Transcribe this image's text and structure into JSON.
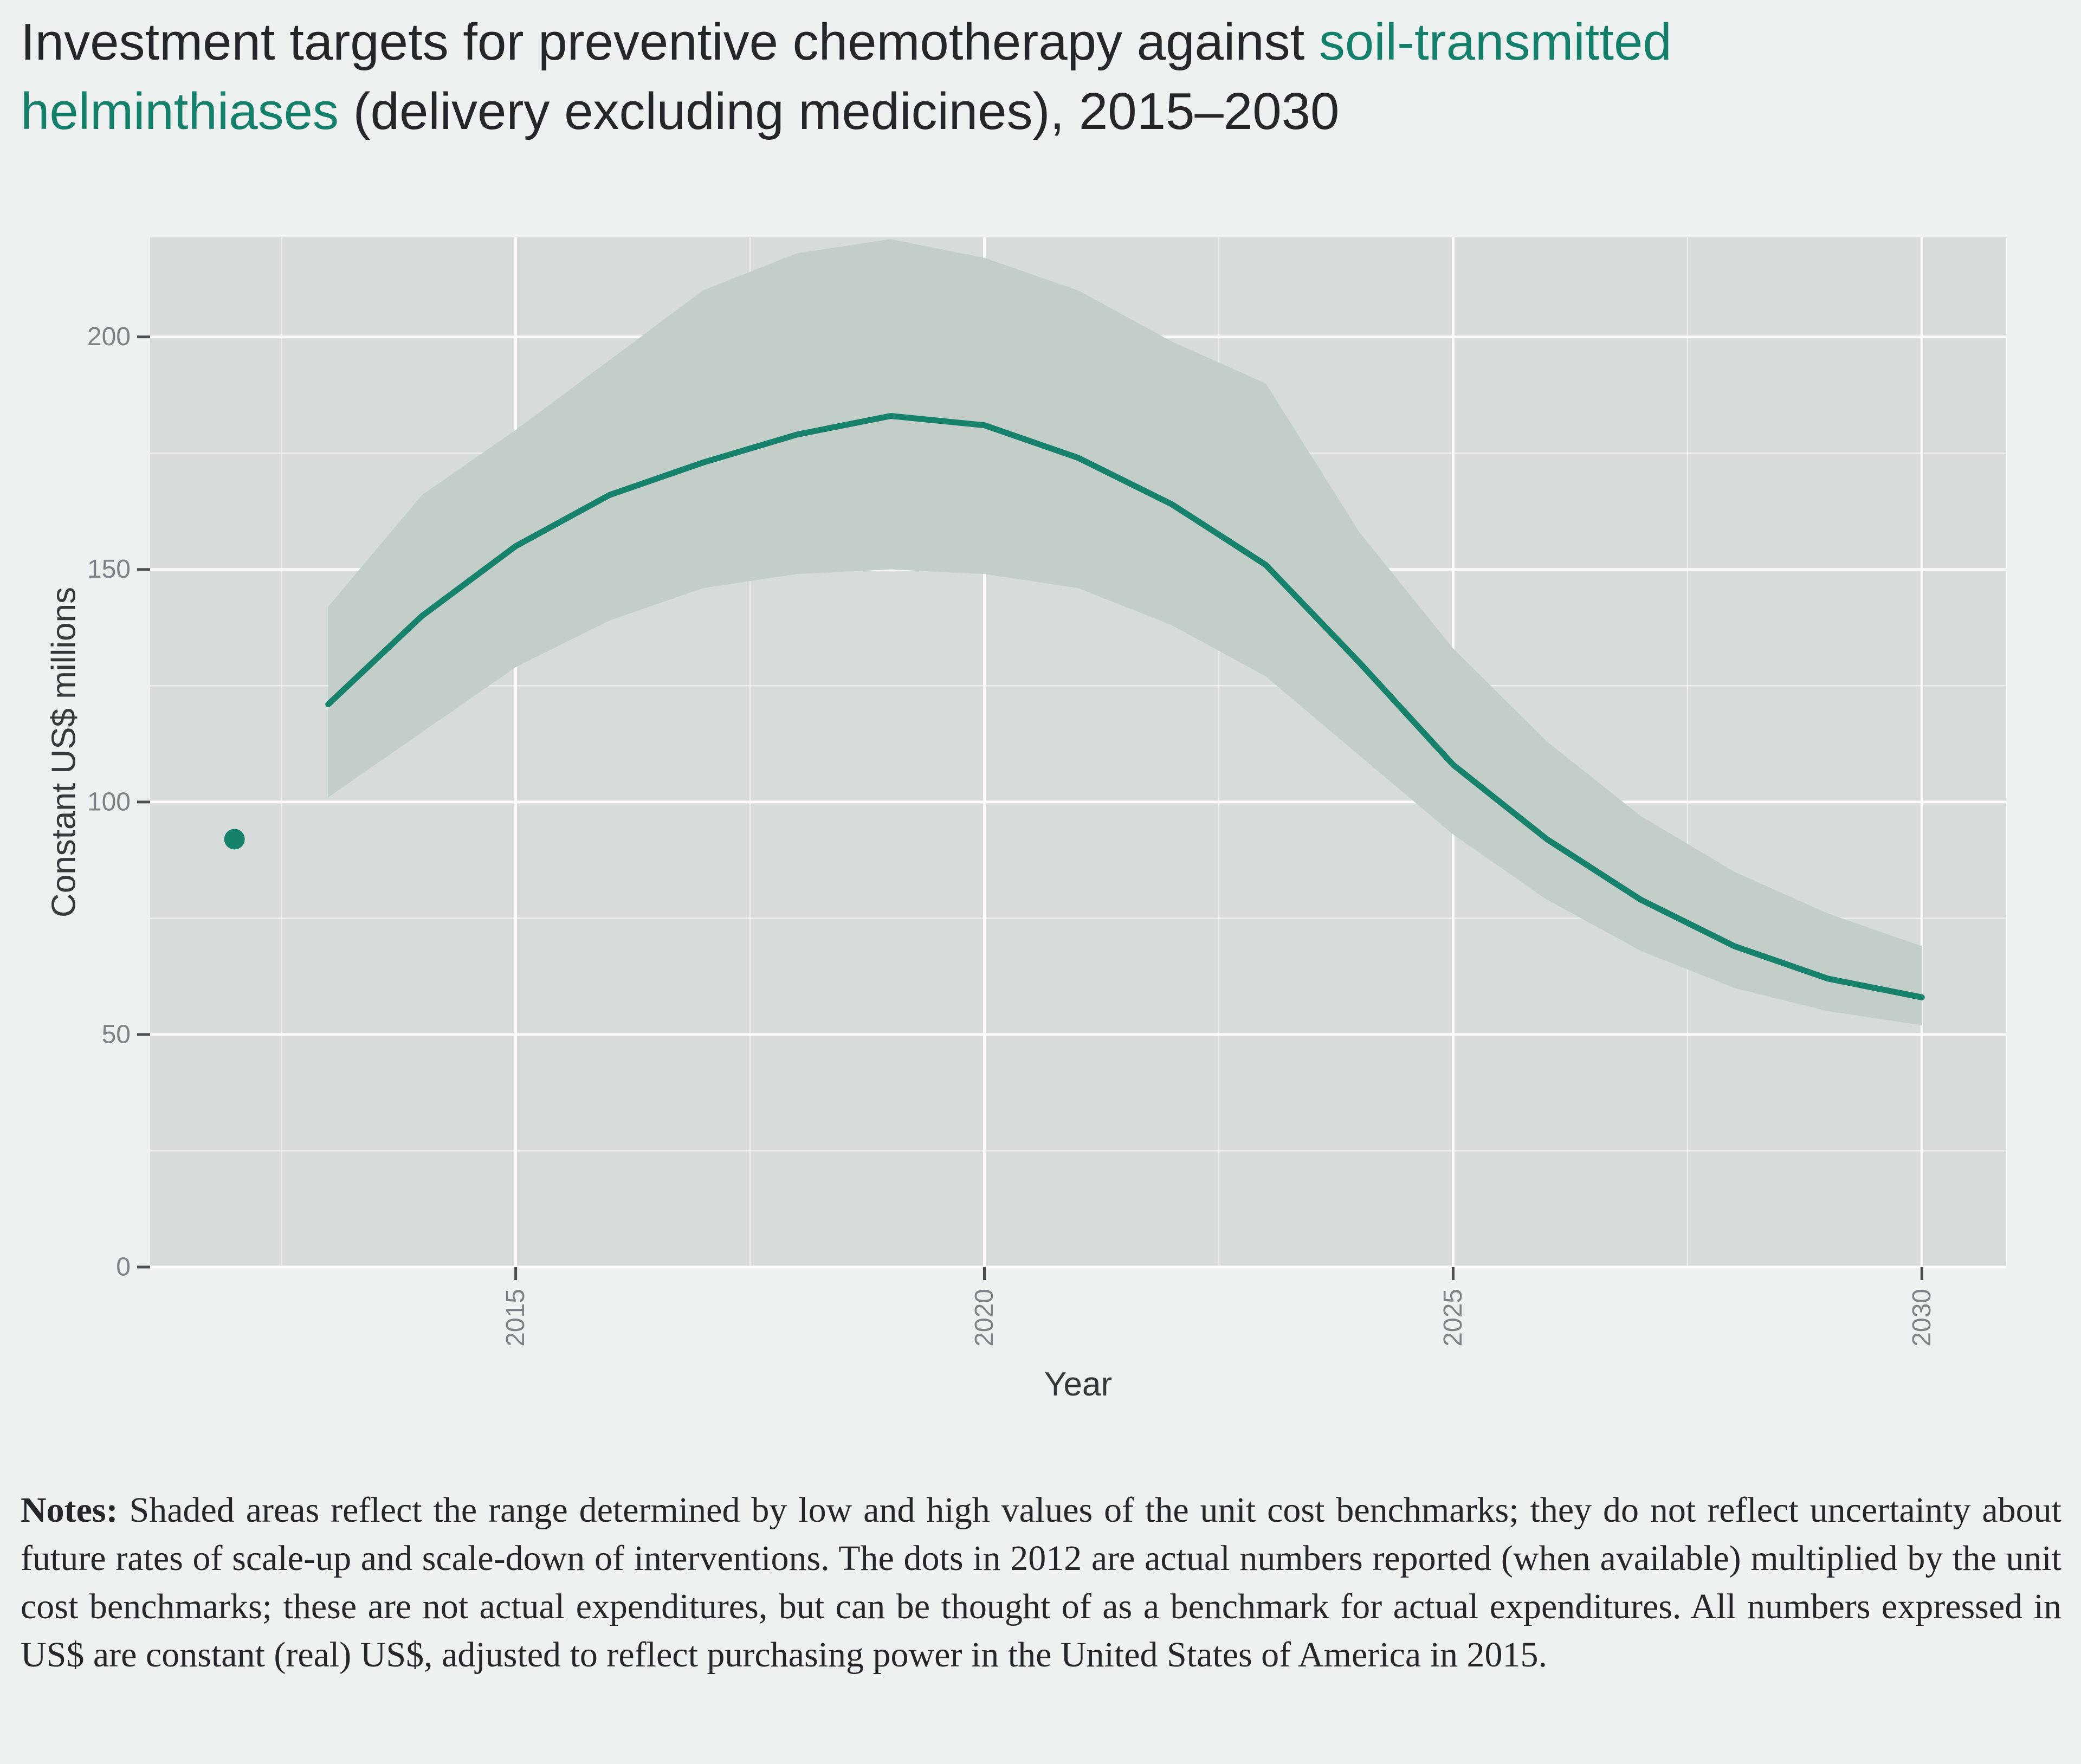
{
  "title": {
    "segments": [
      {
        "text": "Investment targets for preventive chemotherapy against ",
        "style": "dark",
        "break_after": false
      },
      {
        "text": "soil-transmitted",
        "style": "accent",
        "break_after": true
      },
      {
        "text": "helminthiases",
        "style": "accent",
        "break_after": false
      },
      {
        "text": " (delivery excluding medicines), 2015–2030",
        "style": "dark",
        "break_after": false
      }
    ]
  },
  "notes": {
    "label": "Notes:",
    "text": " Shaded areas reflect the range determined by low and high values of the unit cost benchmarks; they do not reflect uncertainty about future rates of scale-up and scale-down of interventions. The dots in 2012 are actual numbers reported (when available) multiplied by the unit cost benchmarks; these are not actual expenditures, but can be thought of as a benchmark for actual expenditures. All numbers expressed in US$ are constant (real) US$, adjusted to reflect purchasing power in the United States of America in 2015."
  },
  "chart_data": {
    "type": "line",
    "title": "Investment targets for preventive chemotherapy against soil-transmitted helminthiases (delivery excluding medicines), 2015–2030",
    "xlabel": "Year",
    "ylabel": "Constant US$ millions",
    "x_range": [
      2011.1,
      2030.9
    ],
    "y_range": [
      0,
      221.4
    ],
    "x_ticks": [
      2015,
      2020,
      2025,
      2030
    ],
    "x_tick_labels": [
      "2015",
      "2020",
      "2025",
      "2030"
    ],
    "x_minor": [
      2012.5,
      2017.5,
      2022.5,
      2027.5
    ],
    "y_ticks": [
      0,
      50,
      100,
      150,
      200
    ],
    "y_tick_labels": [
      "0",
      "50",
      "100",
      "150",
      "200"
    ],
    "y_minor": [
      25,
      75,
      125,
      175
    ],
    "grid": true,
    "legend": "none",
    "years": [
      2013,
      2014,
      2015,
      2016,
      2017,
      2018,
      2019,
      2020,
      2021,
      2022,
      2023,
      2024,
      2025,
      2026,
      2027,
      2028,
      2029,
      2030
    ],
    "series": [
      {
        "name": "investment_target",
        "values": [
          121,
          140,
          155,
          166,
          173,
          179,
          183,
          181,
          174,
          164,
          151,
          130,
          108,
          92,
          79,
          69,
          62,
          58
        ]
      },
      {
        "name": "high_benchmark",
        "values": [
          142,
          166,
          180,
          195,
          210,
          218,
          221,
          217,
          210,
          199,
          190,
          158,
          133,
          113,
          97,
          85,
          76,
          69
        ]
      },
      {
        "name": "low_benchmark",
        "values": [
          101,
          115,
          129,
          139,
          146,
          149,
          150,
          149,
          146,
          138,
          127,
          110,
          93,
          79,
          68,
          60,
          55,
          52
        ]
      }
    ],
    "dot": {
      "year": 2012,
      "value": 92,
      "meaning": "actual reported number multiplied by unit cost benchmark"
    }
  },
  "colors": {
    "background": "#edf2f0",
    "panel": "#d7dbd9",
    "band": "#c4cec9",
    "line": "#17826b",
    "accent": "#14806b",
    "title_text": "#26262a",
    "axis_text": "#7d8286",
    "axis_title": "#36393c",
    "tick_mark": "#4b4f52",
    "grid_major": "#fafbfa",
    "grid_minor": "rgba(255,255,255,0.55)"
  }
}
